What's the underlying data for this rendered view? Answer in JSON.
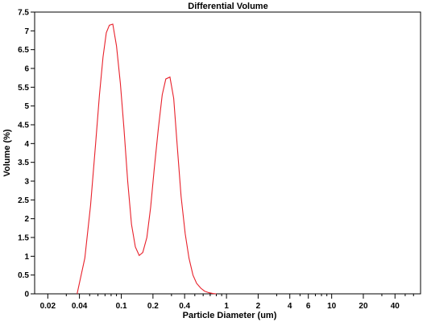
{
  "chart_data": {
    "type": "line",
    "title": "Differential Volume",
    "xlabel": "Particle Diameter (um)",
    "ylabel": "Volume (%)",
    "x_scale": "log",
    "xlim": [
      0.015,
      70
    ],
    "ylim": [
      0,
      7.5
    ],
    "x_ticks": [
      {
        "value": 0.02,
        "label": "0.02"
      },
      {
        "value": 0.04,
        "label": "0.04"
      },
      {
        "value": 0.1,
        "label": "0.1"
      },
      {
        "value": 0.2,
        "label": "0.2"
      },
      {
        "value": 0.4,
        "label": "0.4"
      },
      {
        "value": 1,
        "label": "1"
      },
      {
        "value": 2,
        "label": "2"
      },
      {
        "value": 4,
        "label": "4"
      },
      {
        "value": 6,
        "label": "6"
      },
      {
        "value": 10,
        "label": "10"
      },
      {
        "value": 20,
        "label": "20"
      },
      {
        "value": 40,
        "label": "40"
      }
    ],
    "y_ticks": [
      {
        "value": 0,
        "label": "0"
      },
      {
        "value": 0.5,
        "label": "0.5"
      },
      {
        "value": 1,
        "label": "1"
      },
      {
        "value": 1.5,
        "label": "1.5"
      },
      {
        "value": 2,
        "label": "2"
      },
      {
        "value": 2.5,
        "label": "2.5"
      },
      {
        "value": 3,
        "label": "3"
      },
      {
        "value": 3.5,
        "label": "3.5"
      },
      {
        "value": 4,
        "label": "4"
      },
      {
        "value": 4.5,
        "label": "4.5"
      },
      {
        "value": 5,
        "label": "5"
      },
      {
        "value": 5.5,
        "label": "5.5"
      },
      {
        "value": 6,
        "label": "6"
      },
      {
        "value": 6.5,
        "label": "6.5"
      },
      {
        "value": 7,
        "label": "7"
      },
      {
        "value": 7.5,
        "label": "7.5"
      }
    ],
    "grid": false,
    "series": [
      {
        "color": "#e8212b",
        "x": [
          0.038,
          0.045,
          0.051,
          0.057,
          0.062,
          0.067,
          0.072,
          0.077,
          0.083,
          0.09,
          0.098,
          0.106,
          0.115,
          0.125,
          0.136,
          0.148,
          0.16,
          0.175,
          0.19,
          0.206,
          0.225,
          0.245,
          0.265,
          0.29,
          0.315,
          0.34,
          0.37,
          0.405,
          0.44,
          0.48,
          0.52,
          0.57,
          0.62,
          0.68,
          0.74,
          0.8
        ],
        "y": [
          0.0,
          0.95,
          2.35,
          4.0,
          5.3,
          6.3,
          6.95,
          7.15,
          7.18,
          6.6,
          5.6,
          4.4,
          3.0,
          1.85,
          1.25,
          1.02,
          1.1,
          1.5,
          2.3,
          3.35,
          4.4,
          5.3,
          5.72,
          5.77,
          5.2,
          3.95,
          2.6,
          1.6,
          0.95,
          0.5,
          0.28,
          0.15,
          0.07,
          0.03,
          0.01,
          0.0
        ]
      }
    ]
  }
}
